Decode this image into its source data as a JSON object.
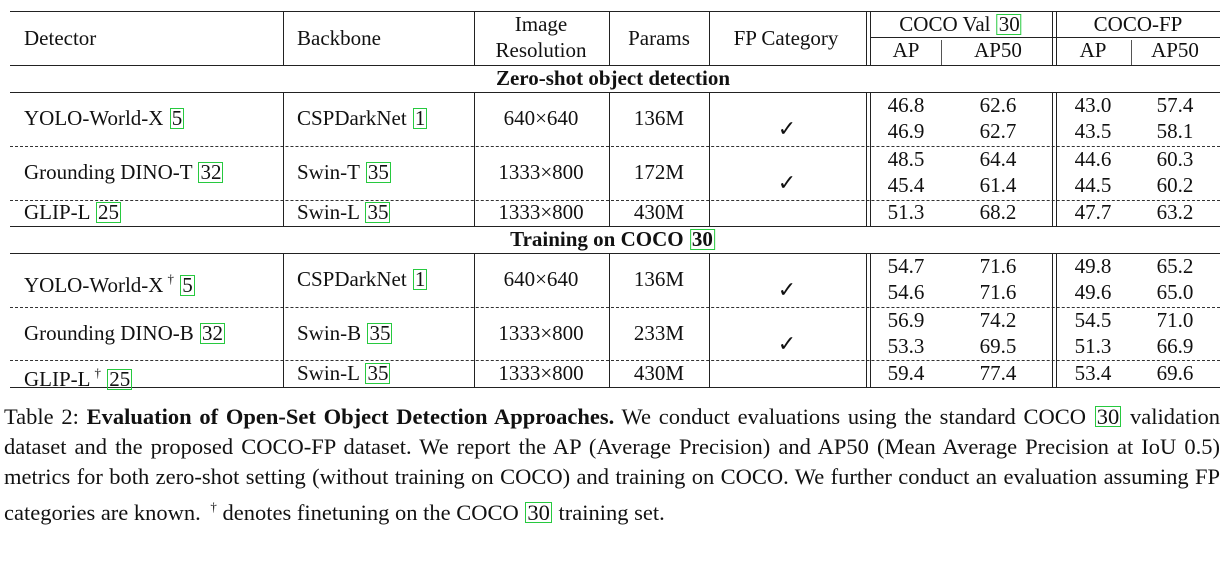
{
  "headers": {
    "detector": "Detector",
    "backbone": "Backbone",
    "image_res_line1": "Image",
    "image_res_line2": "Resolution",
    "params": "Params",
    "fp_category": "FP Category",
    "coco_val": "COCO Val",
    "coco_val_ref": "30",
    "coco_fp": "COCO-FP",
    "ap": "AP",
    "ap50": "AP50"
  },
  "sections": {
    "zero_shot": "Zero-shot object detection",
    "training": "Training on COCO",
    "training_ref": "30"
  },
  "check_symbol": "✓",
  "dagger": "†",
  "rows": [
    {
      "detector": "YOLO-World-X",
      "det_ref": "5",
      "backbone": "CSPDarkNet",
      "bb_ref": "1",
      "res": "640×640",
      "params": "136M",
      "coco_ap": "46.8",
      "coco_ap50": "62.6",
      "fp_ap": "43.0",
      "fp_ap50": "57.4",
      "coco_ap_b": "46.9",
      "coco_ap50_b": "62.7",
      "fp_ap_b": "43.5",
      "fp_ap50_b": "58.1"
    },
    {
      "detector": "Grounding DINO-T",
      "det_ref": "32",
      "backbone": "Swin-T",
      "bb_ref": "35",
      "res": "1333×800",
      "params": "172M",
      "coco_ap": "48.5",
      "coco_ap50": "64.4",
      "fp_ap": "44.6",
      "fp_ap50": "60.3",
      "coco_ap_b": "45.4",
      "coco_ap50_b": "61.4",
      "fp_ap_b": "44.5",
      "fp_ap50_b": "60.2"
    },
    {
      "detector": "GLIP-L",
      "det_ref": "25",
      "backbone": "Swin-L",
      "bb_ref": "35",
      "res": "1333×800",
      "params": "430M",
      "coco_ap": "51.3",
      "coco_ap50": "68.2",
      "fp_ap": "47.7",
      "fp_ap50": "63.2"
    },
    {
      "detector": "YOLO-World-X",
      "det_ref": "5",
      "backbone": "CSPDarkNet",
      "bb_ref": "1",
      "res": "640×640",
      "params": "136M",
      "coco_ap": "54.7",
      "coco_ap50": "71.6",
      "fp_ap": "49.8",
      "fp_ap50": "65.2",
      "coco_ap_b": "54.6",
      "coco_ap50_b": "71.6",
      "fp_ap_b": "49.6",
      "fp_ap50_b": "65.0"
    },
    {
      "detector": "Grounding DINO-B",
      "det_ref": "32",
      "backbone": "Swin-B",
      "bb_ref": "35",
      "res": "1333×800",
      "params": "233M",
      "coco_ap": "56.9",
      "coco_ap50": "74.2",
      "fp_ap": "54.5",
      "fp_ap50": "71.0",
      "coco_ap_b": "53.3",
      "coco_ap50_b": "69.5",
      "fp_ap_b": "51.3",
      "fp_ap50_b": "66.9"
    },
    {
      "detector": "GLIP-L",
      "det_ref": "25",
      "backbone": "Swin-L",
      "bb_ref": "35",
      "res": "1333×800",
      "params": "430M",
      "coco_ap": "59.4",
      "coco_ap50": "77.4",
      "fp_ap": "53.4",
      "fp_ap50": "69.6"
    }
  ],
  "caption": {
    "label": "Table 2: ",
    "title": "Evaluation of Open-Set Object Detection Approaches.",
    "t1": " We conduct evaluations using the standard COCO ",
    "ref1": "30",
    "t2": " validation dataset and the proposed COCO-FP dataset. We report the AP (Average Precision) and AP50 (Mean Average Precision at IoU 0.5) metrics for both zero-shot setting (without training on COCO) and training on COCO. We further conduct an evaluation assuming FP categories are known. ",
    "dagger": "†",
    "t3": " denotes finetuning on the COCO ",
    "ref2": "30",
    "t4": " training set."
  }
}
